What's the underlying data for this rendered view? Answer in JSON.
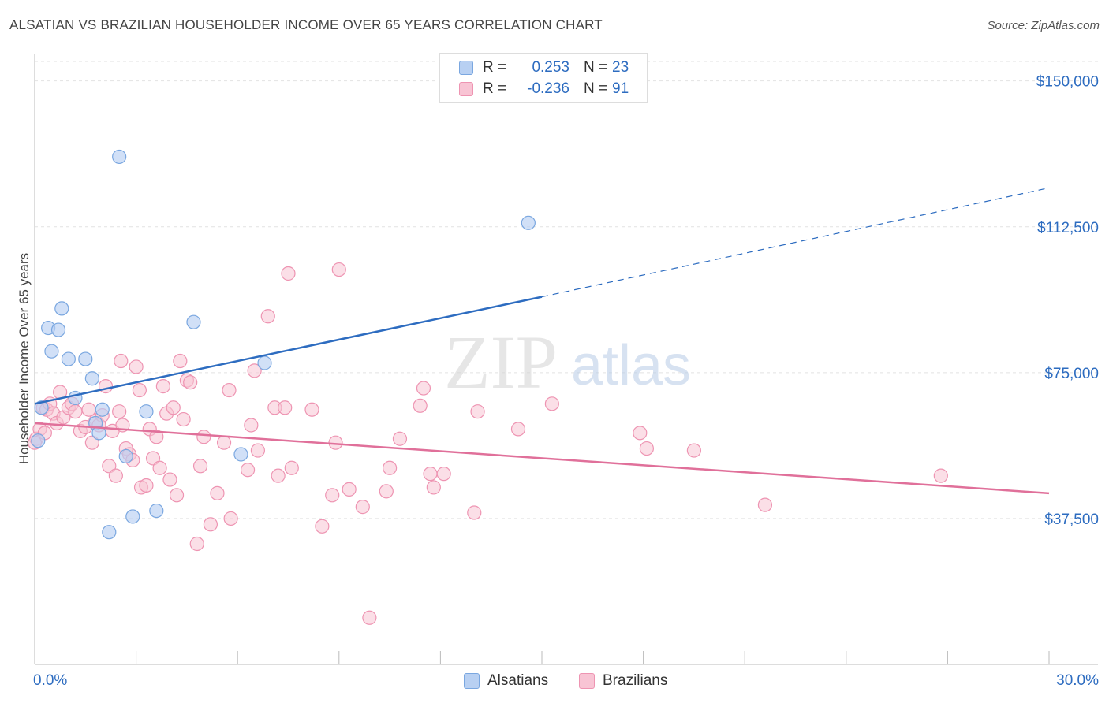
{
  "title": "ALSATIAN VS BRAZILIAN HOUSEHOLDER INCOME OVER 65 YEARS CORRELATION CHART",
  "source": "Source: ZipAtlas.com",
  "watermark": {
    "zip": "ZIP",
    "atlas": "atlas"
  },
  "legend": {
    "r_label": "R =",
    "n_label": "N =",
    "alsatians": {
      "r": "0.253",
      "n": "23"
    },
    "brazilians": {
      "r": "-0.236",
      "n": "91"
    }
  },
  "bottom_legend": {
    "alsatians": "Alsatians",
    "brazilians": "Brazilians"
  },
  "colors": {
    "alsatian_fill": "#b8d0f2",
    "alsatian_stroke": "#7aa7e0",
    "alsatian_line": "#2d6cc0",
    "brazilian_fill": "#f8c4d4",
    "brazilian_stroke": "#ee94b2",
    "brazilian_line": "#e0709a",
    "tick_label": "#2d6cc0",
    "grid": "#e2e2e2"
  },
  "chart_data": {
    "type": "scatter",
    "title": "ALSATIAN VS BRAZILIAN HOUSEHOLDER INCOME OVER 65 YEARS CORRELATION CHART",
    "xlabel": "",
    "ylabel": "Householder Income Over 65 years",
    "xlim": [
      0,
      30
    ],
    "ylim": [
      0,
      155000
    ],
    "x_tick_labels": [
      "0.0%",
      "30.0%"
    ],
    "y_ticks": [
      37500,
      75000,
      112500,
      150000
    ],
    "y_tick_labels": [
      "$37,500",
      "$75,000",
      "$112,500",
      "$150,000"
    ],
    "grid": true,
    "legend_position": "top-center",
    "series": [
      {
        "name": "Alsatians",
        "r": 0.253,
        "n": 23,
        "trend": {
          "x0": 0,
          "y0": 67000,
          "x1": 15,
          "y1": 94500,
          "dashed_to_x": 30,
          "dashed_to_y": 122500
        },
        "points": [
          [
            0.1,
            57500
          ],
          [
            0.2,
            66000
          ],
          [
            0.4,
            86500
          ],
          [
            0.5,
            80500
          ],
          [
            0.7,
            86000
          ],
          [
            0.8,
            91500
          ],
          [
            1.0,
            78500
          ],
          [
            1.2,
            68500
          ],
          [
            1.5,
            78500
          ],
          [
            1.7,
            73500
          ],
          [
            1.8,
            62000
          ],
          [
            1.9,
            59500
          ],
          [
            2.0,
            65500
          ],
          [
            2.2,
            34000
          ],
          [
            2.5,
            130500
          ],
          [
            2.7,
            53500
          ],
          [
            2.9,
            38000
          ],
          [
            3.3,
            65000
          ],
          [
            3.6,
            39500
          ],
          [
            4.7,
            88000
          ],
          [
            6.1,
            54000
          ],
          [
            6.8,
            77500
          ],
          [
            14.6,
            113500
          ]
        ]
      },
      {
        "name": "Brazilians",
        "r": -0.236,
        "n": 91,
        "trend": {
          "x0": 0,
          "y0": 62000,
          "x1": 30,
          "y1": 44000
        },
        "points": [
          [
            0.05,
            58000
          ],
          [
            0.15,
            60500
          ],
          [
            0.25,
            66000
          ],
          [
            0.35,
            65500
          ],
          [
            0.45,
            67000
          ],
          [
            0.55,
            64500
          ],
          [
            0.65,
            62000
          ],
          [
            0.75,
            70000
          ],
          [
            0.85,
            63500
          ],
          [
            1.0,
            66000
          ],
          [
            1.1,
            67000
          ],
          [
            1.2,
            65000
          ],
          [
            1.35,
            60000
          ],
          [
            1.5,
            61000
          ],
          [
            1.6,
            65500
          ],
          [
            1.7,
            57000
          ],
          [
            1.8,
            62500
          ],
          [
            1.9,
            61500
          ],
          [
            2.0,
            64000
          ],
          [
            2.1,
            71500
          ],
          [
            2.2,
            51000
          ],
          [
            2.3,
            60000
          ],
          [
            2.4,
            48500
          ],
          [
            2.5,
            65000
          ],
          [
            2.55,
            78000
          ],
          [
            2.6,
            61500
          ],
          [
            2.7,
            55500
          ],
          [
            2.8,
            54000
          ],
          [
            2.9,
            52500
          ],
          [
            3.0,
            76500
          ],
          [
            3.1,
            70500
          ],
          [
            3.15,
            45500
          ],
          [
            3.3,
            46000
          ],
          [
            3.4,
            60500
          ],
          [
            3.5,
            53000
          ],
          [
            3.6,
            58500
          ],
          [
            3.7,
            50500
          ],
          [
            3.8,
            71500
          ],
          [
            3.9,
            64500
          ],
          [
            4.0,
            47500
          ],
          [
            4.1,
            66000
          ],
          [
            4.2,
            43500
          ],
          [
            4.3,
            78000
          ],
          [
            4.4,
            63000
          ],
          [
            4.5,
            73000
          ],
          [
            4.6,
            72500
          ],
          [
            4.8,
            31000
          ],
          [
            4.9,
            51000
          ],
          [
            5.0,
            58500
          ],
          [
            5.2,
            36000
          ],
          [
            5.4,
            44000
          ],
          [
            5.6,
            57000
          ],
          [
            5.75,
            70500
          ],
          [
            5.8,
            37500
          ],
          [
            6.3,
            50000
          ],
          [
            6.4,
            61500
          ],
          [
            6.5,
            75500
          ],
          [
            6.6,
            55000
          ],
          [
            6.9,
            89500
          ],
          [
            7.1,
            66000
          ],
          [
            7.2,
            48500
          ],
          [
            7.4,
            66000
          ],
          [
            7.5,
            100500
          ],
          [
            7.6,
            50500
          ],
          [
            8.2,
            65500
          ],
          [
            8.5,
            35500
          ],
          [
            8.8,
            43500
          ],
          [
            8.9,
            57000
          ],
          [
            9.0,
            101500
          ],
          [
            9.3,
            45000
          ],
          [
            9.7,
            40500
          ],
          [
            9.9,
            12000
          ],
          [
            10.4,
            44500
          ],
          [
            10.5,
            50500
          ],
          [
            10.8,
            58000
          ],
          [
            11.4,
            66500
          ],
          [
            11.5,
            71000
          ],
          [
            11.7,
            49000
          ],
          [
            11.8,
            45500
          ],
          [
            12.1,
            49000
          ],
          [
            13.0,
            39000
          ],
          [
            13.1,
            65000
          ],
          [
            14.3,
            60500
          ],
          [
            15.3,
            67000
          ],
          [
            17.9,
            59500
          ],
          [
            18.1,
            55500
          ],
          [
            19.5,
            55000
          ],
          [
            21.6,
            41000
          ],
          [
            26.8,
            48500
          ],
          [
            0.0,
            57000
          ],
          [
            0.3,
            59500
          ]
        ]
      }
    ]
  }
}
